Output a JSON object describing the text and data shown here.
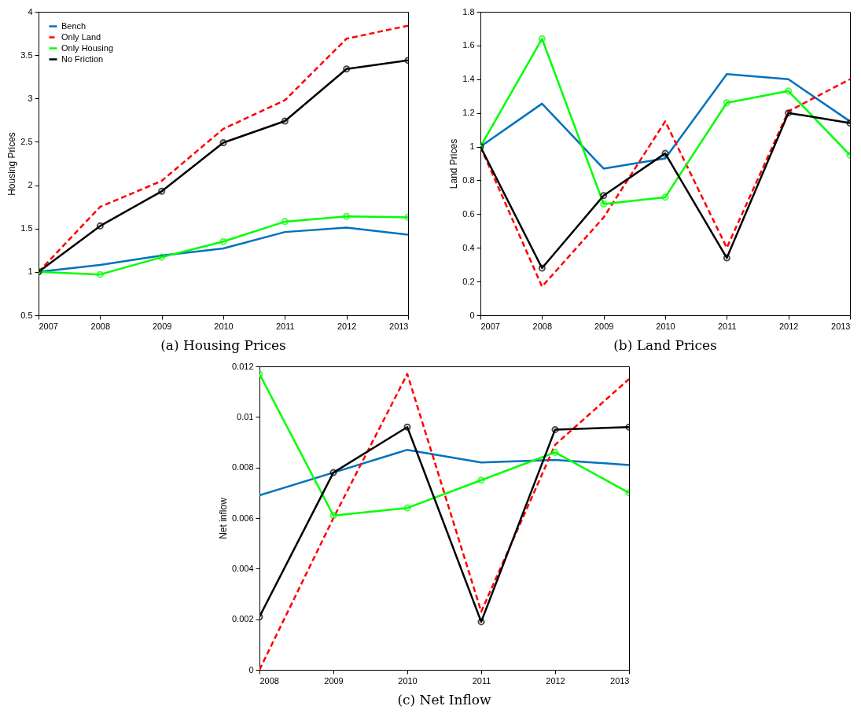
{
  "chart_data": [
    {
      "type": "line",
      "title": "(a) Housing Prices",
      "ylabel": "Housing Prices",
      "x": [
        2007,
        2008,
        2009,
        2010,
        2011,
        2012,
        2013
      ],
      "xlim": [
        2007,
        2013
      ],
      "xticks": [
        2007,
        2008,
        2009,
        2010,
        2011,
        2012,
        2013
      ],
      "ylim": [
        0.5,
        4
      ],
      "yticks": [
        0.5,
        1,
        1.5,
        2,
        2.5,
        3,
        3.5,
        4
      ],
      "legend": "top left",
      "grid": false,
      "series": [
        {
          "name": "Bench",
          "color": "#0072bd",
          "line_style": "solid",
          "marker": "none",
          "values": [
            1.0,
            1.08,
            1.19,
            1.27,
            1.46,
            1.51,
            1.43
          ]
        },
        {
          "name": "Only Land",
          "color": "#ff0000",
          "line_style": "dashed",
          "marker": "none",
          "values": [
            1.0,
            1.75,
            2.05,
            2.65,
            2.98,
            3.69,
            3.84
          ]
        },
        {
          "name": "Only Housing",
          "color": "#00ff00",
          "line_style": "solid",
          "marker": "circle",
          "values": [
            1.0,
            0.97,
            1.17,
            1.35,
            1.58,
            1.64,
            1.63
          ]
        },
        {
          "name": "No Friction",
          "color": "#000000",
          "line_style": "solid",
          "marker": "circle",
          "values": [
            1.0,
            1.53,
            1.93,
            2.49,
            2.74,
            3.34,
            3.44
          ]
        }
      ]
    },
    {
      "type": "line",
      "title": "(b) Land Prices",
      "ylabel": "Land Prices",
      "x": [
        2007,
        2008,
        2009,
        2010,
        2011,
        2012,
        2013
      ],
      "xlim": [
        2007,
        2013
      ],
      "xticks": [
        2007,
        2008,
        2009,
        2010,
        2011,
        2012,
        2013
      ],
      "ylim": [
        0,
        1.8
      ],
      "yticks": [
        0,
        0.2,
        0.4,
        0.6,
        0.8,
        1,
        1.2,
        1.4,
        1.6,
        1.8
      ],
      "legend": "top left",
      "grid": false,
      "series": [
        {
          "name": "Bench",
          "color": "#0072bd",
          "line_style": "solid",
          "marker": "none",
          "values": [
            1.0,
            1.255,
            0.87,
            0.93,
            1.43,
            1.4,
            1.15
          ]
        },
        {
          "name": "Only Land",
          "color": "#ff0000",
          "line_style": "dashed",
          "marker": "none",
          "values": [
            1.0,
            0.17,
            0.58,
            1.15,
            0.4,
            1.21,
            1.4
          ]
        },
        {
          "name": "Only Housing",
          "color": "#00ff00",
          "line_style": "solid",
          "marker": "circle",
          "values": [
            1.0,
            1.64,
            0.66,
            0.7,
            1.26,
            1.33,
            0.95
          ]
        },
        {
          "name": "No Friction",
          "color": "#000000",
          "line_style": "solid",
          "marker": "circle",
          "values": [
            1.0,
            0.28,
            0.71,
            0.96,
            0.34,
            1.2,
            1.14
          ]
        }
      ]
    },
    {
      "type": "line",
      "title": "(c) Net Inflow",
      "ylabel": "Net inflow",
      "x": [
        2008,
        2009,
        2010,
        2011,
        2012,
        2013
      ],
      "xlim": [
        2008,
        2013
      ],
      "xticks": [
        2008,
        2009,
        2010,
        2011,
        2012,
        2013
      ],
      "ylim": [
        0,
        0.012
      ],
      "yticks": [
        0,
        0.002,
        0.004,
        0.006,
        0.008,
        0.01,
        0.012
      ],
      "legend": "top left",
      "grid": false,
      "series": [
        {
          "name": "Bench",
          "color": "#0072bd",
          "line_style": "solid",
          "marker": "none",
          "values": [
            0.0069,
            0.0078,
            0.0087,
            0.0082,
            0.0083,
            0.0081
          ]
        },
        {
          "name": "Only Land",
          "color": "#ff0000",
          "line_style": "dashed",
          "marker": "none",
          "values": [
            0,
            0.006,
            0.0117,
            0.0023,
            0.0089,
            0.0115
          ]
        },
        {
          "name": "Only Housing",
          "color": "#00ff00",
          "line_style": "solid",
          "marker": "circle",
          "values": [
            0.0117,
            0.0061,
            0.0064,
            0.0075,
            0.0086,
            0.007
          ]
        },
        {
          "name": "No Friction",
          "color": "#000000",
          "line_style": "solid",
          "marker": "circle",
          "values": [
            0.0021,
            0.0078,
            0.0096,
            0.0019,
            0.0095,
            0.0096
          ]
        }
      ]
    }
  ]
}
